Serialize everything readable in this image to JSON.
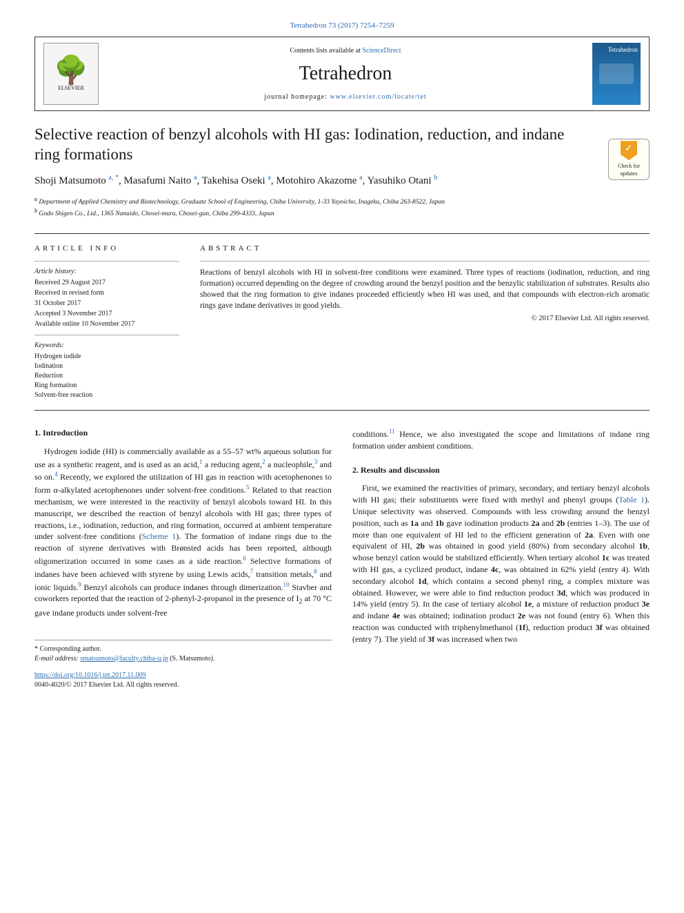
{
  "header": {
    "citation": "Tetrahedron 73 (2017) 7254–7259",
    "contents_prefix": "Contents lists available at ",
    "contents_link": "ScienceDirect",
    "journal_name": "Tetrahedron",
    "homepage_prefix": "journal homepage: ",
    "homepage_url": "www.elsevier.com/locate/tet",
    "publisher_logo": "ELSEVIER",
    "cover_label": "Tetrahedron"
  },
  "updates_badge": {
    "line1": "Check for",
    "line2": "updates"
  },
  "article": {
    "title": "Selective reaction of benzyl alcohols with HI gas: Iodination, reduction, and indane ring formations",
    "authors_html": "Shoji Matsumoto <sup>a, *</sup>, Masafumi Naito <sup>a</sup>, Takehisa Oseki <sup>a</sup>, Motohiro Akazome <sup>a</sup>, Yasuhiko Otani <sup>b</sup>",
    "affiliations": [
      {
        "sup": "a",
        "text": "Department of Applied Chemistry and Biotechnology, Graduate School of Engineering, Chiba University, 1-33 Yayoicho, Inageku, Chiba 263-8522, Japan"
      },
      {
        "sup": "b",
        "text": "Godo Shigen Co., Ltd., 1365 Nanaido, Chosei-mura, Chosei-gun, Chiba 299-4333, Japan"
      }
    ]
  },
  "info": {
    "heading": "ARTICLE INFO",
    "history_label": "Article history:",
    "history": [
      "Received 29 August 2017",
      "Received in revised form",
      "31 October 2017",
      "Accepted 3 November 2017",
      "Available online 10 November 2017"
    ],
    "keywords_label": "Keywords:",
    "keywords": [
      "Hydrogen iodide",
      "Iodination",
      "Reduction",
      "Ring formation",
      "Solvent-free reaction"
    ]
  },
  "abstract": {
    "heading": "ABSTRACT",
    "text": "Reactions of benzyl alcohols with HI in solvent-free conditions were examined. Three types of reactions (iodination, reduction, and ring formation) occurred depending on the degree of crowding around the benzyl position and the benzylic stabilization of substrates. Results also showed that the ring formation to give indanes proceeded efficiently when HI was used, and that compounds with electron-rich aromatic rings gave indane derivatives in good yields.",
    "copyright": "© 2017 Elsevier Ltd. All rights reserved."
  },
  "sections": {
    "intro": {
      "heading": "1. Introduction",
      "para_html": "Hydrogen iodide (HI) is commercially available as a 55–57 wt% aqueous solution for use as a synthetic reagent, and is used as an acid,<sup>1</sup> a reducing agent,<sup>2</sup> a nucleophile,<sup>3</sup> and so on.<sup>4</sup> Recently, we explored the utilization of HI gas in reaction with acetophenones to form α-alkylated acetophenones under solvent-free conditions.<sup>5</sup> Related to that reaction mechanism, we were interested in the reactivity of benzyl alcohols toward HI. In this manuscript, we described the reaction of benzyl alcohols with HI gas; three types of reactions, i.e., iodination, reduction, and ring formation, occurred at ambient temperature under solvent-free conditions (<span class=\"ref-link\">Scheme 1</span>). The formation of indane rings due to the reaction of styrene derivatives with Brønsted acids has been reported, although oligomerization occurred in some cases as a side reaction.<sup>6</sup> Selective formations of indanes have been achieved with styrene by using Lewis acids,<sup>7</sup> transition metals,<sup>8</sup> and ionic liquids.<sup>9</sup> Benzyl alcohols can produce indanes through dimerization.<sup>10</sup> Stavber and coworkers reported that the reaction of 2-phenyl-2-propanol in the presence of I<sub>2</sub> at 70 °C gave indane products under solvent-free"
    },
    "intro_cont_html": "conditions.<sup>11</sup> Hence, we also investigated the scope and limitations of indane ring formation under ambient conditions.",
    "results": {
      "heading": "2. Results and discussion",
      "para_html": "First, we examined the reactivities of primary, secondary, and tertiary benzyl alcohols with HI gas; their substituents were fixed with methyl and phenyl groups (<span class=\"ref-link\">Table 1</span>). Unique selectivity was observed. Compounds with less crowding around the benzyl position, such as <b>1a</b> and <b>1b</b> gave iodination products <b>2a</b> and <b>2b</b> (entries 1–3). The use of more than one equivalent of HI led to the efficient generation of <b>2a</b>. Even with one equivalent of HI, <b>2b</b> was obtained in good yield (80%) from secondary alcohol <b>1b</b>, whose benzyl cation would be stabilized efficiently. When tertiary alcohol <b>1c</b> was treated with HI gas, a cyclized product, indane <b>4c</b>, was obtained in 62% yield (entry 4). With secondary alcohol <b>1d</b>, which contains a second phenyl ring, a complex mixture was obtained. However, we were able to find reduction product <b>3d</b>, which was produced in 14% yield (entry 5). In the case of tertiary alcohol <b>1e</b>, a mixture of reduction product <b>3e</b> and indane <b>4e</b> was obtained; iodination product <b>2e</b> was not found (entry 6). When this reaction was conducted with triphenylmethanol (<b>1f</b>), reduction product <b>3f</b> was obtained (entry 7). The yield of <b>3f</b> was increased when two"
    }
  },
  "footer": {
    "corresponding": "* Corresponding author.",
    "email_label": "E-mail address: ",
    "email": "smatsumoto@faculty.chiba-u.jp",
    "email_suffix": " (S. Matsumoto).",
    "doi_url": "https://doi.org/10.1016/j.tet.2017.11.009",
    "issn_line": "0040-4020/© 2017 Elsevier Ltd. All rights reserved."
  },
  "colors": {
    "link": "#2b6cb0",
    "text": "#1a1a1a",
    "rule": "#333333",
    "cover_top": "#1e5a8e",
    "cover_bottom": "#2784c7",
    "badge_mark": "#f0a020"
  },
  "typography": {
    "body_pt": 12,
    "title_pt": 23,
    "journal_pt": 28,
    "abstract_pt": 11.5,
    "info_pt": 10,
    "affil_pt": 9.5
  }
}
